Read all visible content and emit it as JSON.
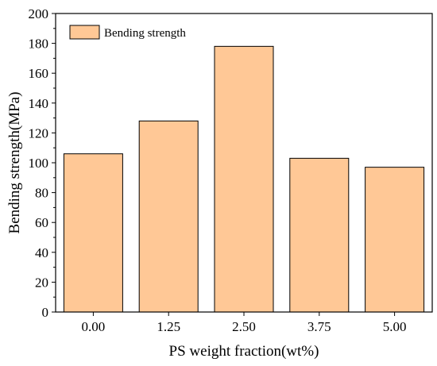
{
  "chart_data": {
    "type": "bar",
    "categories": [
      "0.00",
      "1.25",
      "2.50",
      "3.75",
      "5.00"
    ],
    "series": [
      {
        "name": "Bending strength",
        "values": [
          106,
          128,
          178,
          103,
          97
        ]
      }
    ],
    "xlabel": "PS weight fraction(wt%)",
    "ylabel": "Bending strength(MPa)",
    "ylim": [
      0,
      200
    ],
    "yticks": [
      0,
      20,
      40,
      60,
      80,
      100,
      120,
      140,
      160,
      180,
      200
    ],
    "grid": false,
    "legend_position": "top-left",
    "bar_color": "#FFC896",
    "bar_edge_color": "#000000"
  }
}
